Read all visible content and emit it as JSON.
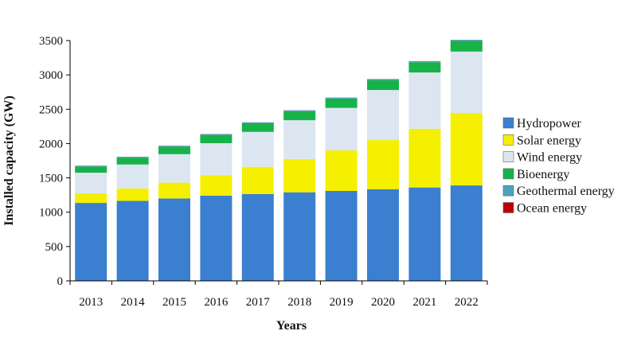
{
  "chart_data": {
    "type": "bar",
    "stacked": true,
    "title": "",
    "xlabel": "Years",
    "ylabel": "Installed capacity (GW)",
    "ylim": [
      0,
      3500
    ],
    "yticks": [
      0,
      500,
      1000,
      1500,
      2000,
      2500,
      3000,
      3500
    ],
    "grid": false,
    "legend_position": "right",
    "categories": [
      "2013",
      "2014",
      "2015",
      "2016",
      "2017",
      "2018",
      "2019",
      "2020",
      "2021",
      "2022"
    ],
    "series": [
      {
        "name": "Hydropower",
        "color": "#3b7fd0",
        "values": [
          1135,
          1165,
          1200,
          1240,
          1265,
          1290,
          1310,
          1335,
          1360,
          1390
        ]
      },
      {
        "name": "Solar energy",
        "color": "#f5ef00",
        "values": [
          140,
          180,
          230,
          300,
          395,
          485,
          590,
          715,
          855,
          1055
        ]
      },
      {
        "name": "Wind energy",
        "color": "#dce6f1",
        "values": [
          300,
          350,
          415,
          465,
          510,
          565,
          620,
          730,
          820,
          895
        ]
      },
      {
        "name": "Bioenergy",
        "color": "#17b24a",
        "values": [
          90,
          100,
          110,
          120,
          125,
          130,
          135,
          145,
          150,
          155
        ]
      },
      {
        "name": "Geothermal energy",
        "color": "#4aa3c0",
        "values": [
          12,
          12,
          13,
          13,
          13,
          14,
          14,
          14,
          15,
          15
        ]
      },
      {
        "name": "Ocean energy",
        "color": "#c00000",
        "values": [
          1,
          1,
          1,
          1,
          1,
          1,
          1,
          1,
          1,
          1
        ]
      }
    ]
  }
}
